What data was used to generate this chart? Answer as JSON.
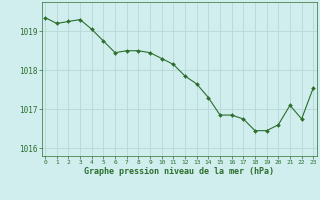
{
  "x": [
    0,
    1,
    2,
    3,
    4,
    5,
    6,
    7,
    8,
    9,
    10,
    11,
    12,
    13,
    14,
    15,
    16,
    17,
    18,
    19,
    20,
    21,
    22,
    23
  ],
  "y": [
    1019.35,
    1019.2,
    1019.25,
    1019.3,
    1019.05,
    1018.75,
    1018.45,
    1018.5,
    1018.5,
    1018.45,
    1018.3,
    1018.15,
    1017.85,
    1017.65,
    1017.3,
    1016.85,
    1016.85,
    1016.75,
    1016.45,
    1016.45,
    1016.6,
    1017.1,
    1016.75,
    1017.55
  ],
  "line_color": "#2d6e2d",
  "marker_color": "#2d6e2d",
  "bg_color": "#d0eeee",
  "grid_color": "#b8d8d8",
  "xlabel": "Graphe pression niveau de la mer (hPa)",
  "xlabel_color": "#2d6e2d",
  "tick_color": "#2d6e2d",
  "ylim": [
    1015.8,
    1019.75
  ],
  "yticks": [
    1016,
    1017,
    1018,
    1019
  ],
  "xlim": [
    -0.3,
    23.3
  ],
  "xticks": [
    0,
    1,
    2,
    3,
    4,
    5,
    6,
    7,
    8,
    9,
    10,
    11,
    12,
    13,
    14,
    15,
    16,
    17,
    18,
    19,
    20,
    21,
    22,
    23
  ]
}
